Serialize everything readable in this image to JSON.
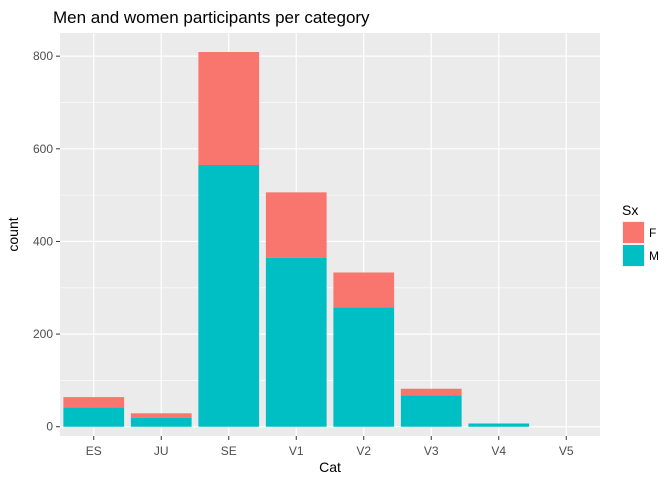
{
  "chart_data": {
    "type": "bar",
    "stacked": true,
    "title": "Men and women participants per category",
    "xlabel": "Cat",
    "ylabel": "count",
    "categories": [
      "ES",
      "JU",
      "SE",
      "V1",
      "V2",
      "V3",
      "V4",
      "V5"
    ],
    "series": [
      {
        "name": "M",
        "values": [
          42,
          19,
          565,
          365,
          258,
          68,
          7,
          0
        ],
        "color": "#00BFC4"
      },
      {
        "name": "F",
        "values": [
          22,
          10,
          244,
          141,
          75,
          14,
          0,
          0
        ],
        "color": "#F8766D"
      }
    ],
    "ylim": [
      -20,
      850
    ],
    "yticks": [
      0,
      200,
      400,
      600,
      800
    ],
    "grid": true,
    "panel_color": "#EBEBEB",
    "grid_color": "#FFFFFF",
    "legend": {
      "title": "Sx",
      "position": "right",
      "entries": [
        {
          "label": "F",
          "color": "#F8766D"
        },
        {
          "label": "M",
          "color": "#00BFC4"
        }
      ]
    }
  }
}
